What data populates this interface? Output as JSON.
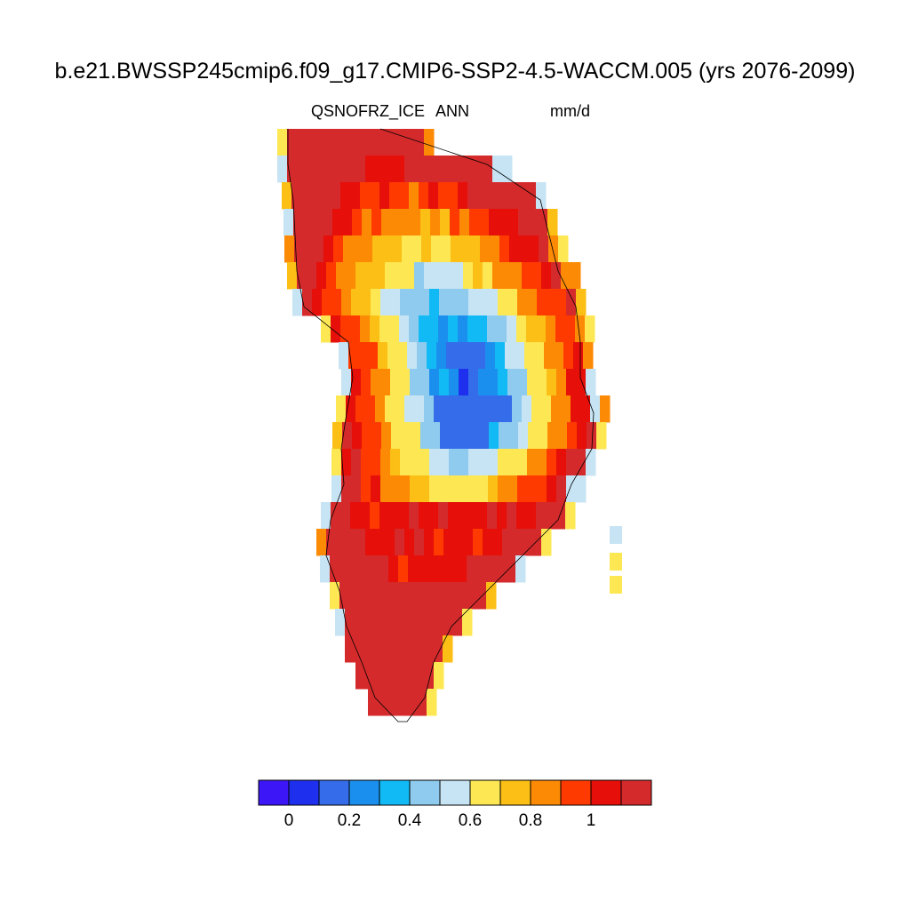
{
  "title": "b.e21.BWSSP245cmip6.f09_g17.CMIP6-SSP2-4.5-WACCM.005 (yrs 2076-2099)",
  "subtitle_left": "QSNOFRZ_ICE",
  "subtitle_center": "ANN",
  "subtitle_right": "mm/d",
  "chart_data": {
    "type": "heatmap",
    "variable": "QSNOFRZ_ICE",
    "season": "ANN",
    "units": "mm/d",
    "region": "Greenland",
    "colorbar": {
      "levels": [
        0.0,
        0.1,
        0.2,
        0.3,
        0.4,
        0.5,
        0.6,
        0.7,
        0.8,
        0.9,
        1.0,
        1.1
      ],
      "colors": [
        "#3d16f7",
        "#1e30ee",
        "#356cea",
        "#1b8fee",
        "#12baf5",
        "#8fcbee",
        "#c7e4f4",
        "#fde854",
        "#fbbf15",
        "#fd8a05",
        "#fe3a00",
        "#e60f0a",
        "#d42a2b"
      ],
      "tick_labels": [
        "0",
        "0.2",
        "0.4",
        "0.6",
        "0.8",
        "1"
      ],
      "tick_values": [
        0.0,
        0.2,
        0.4,
        0.6,
        0.8,
        1.0
      ]
    },
    "pattern": "interior ice sheet low (0.1-0.4 mm/d), coastal margins high (>1.1 mm/d)"
  }
}
